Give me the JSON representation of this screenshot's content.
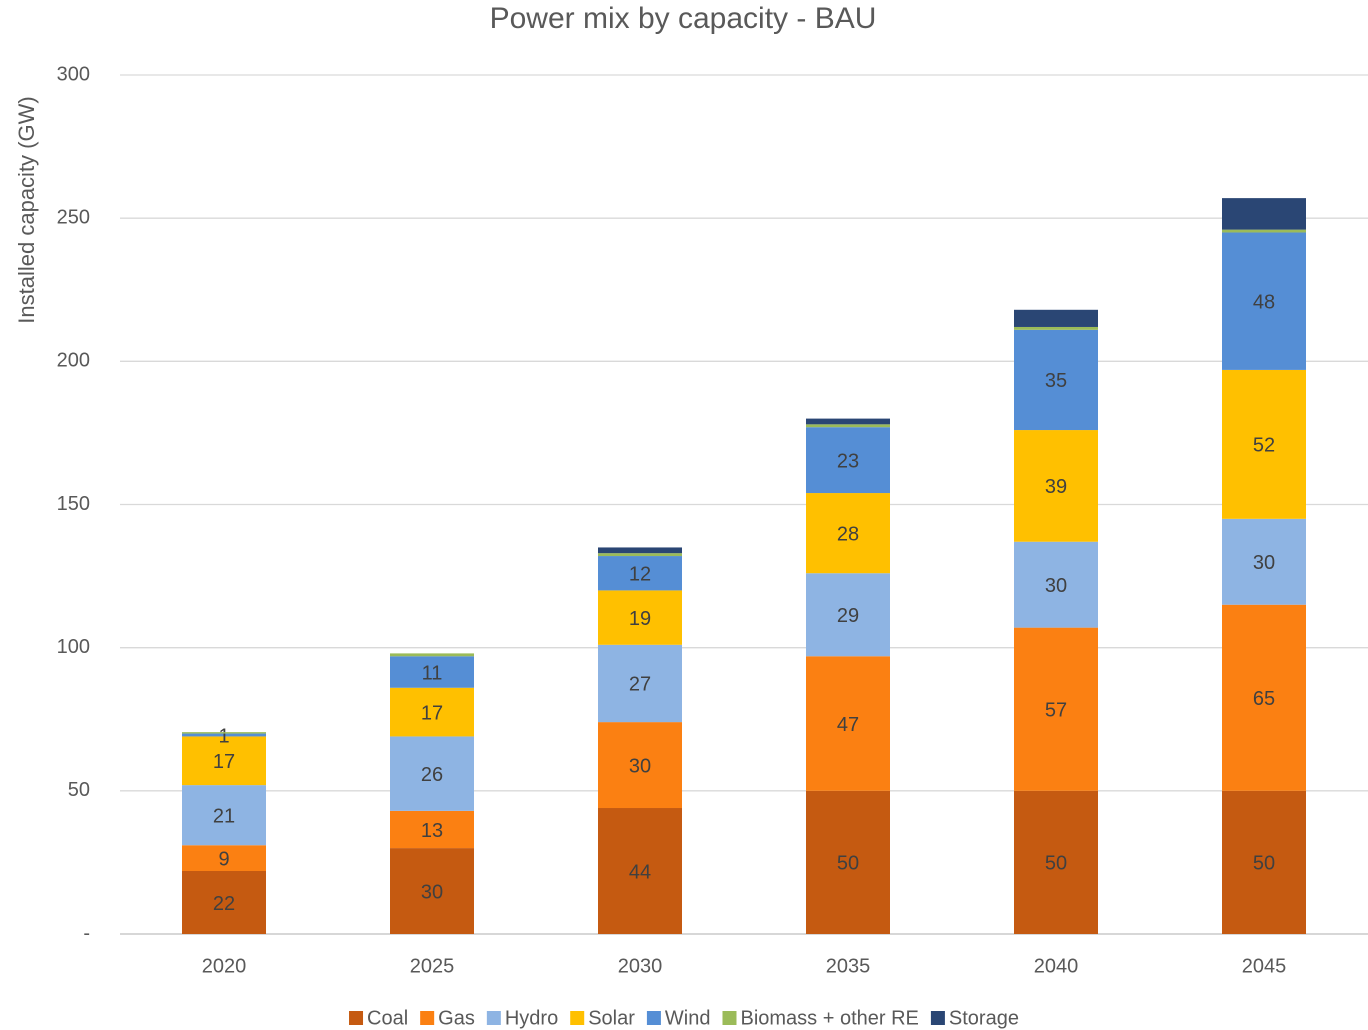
{
  "chart_data": {
    "type": "stacked_bar",
    "title": "Power mix by capacity - BAU",
    "ylabel": "Installed capacity (GW)",
    "categories": [
      "2020",
      "2025",
      "2030",
      "2035",
      "2040",
      "2045"
    ],
    "series": [
      {
        "name": "Coal",
        "color": "#c55a11",
        "show_labels": true,
        "values": [
          22,
          30,
          44,
          50,
          50,
          50
        ]
      },
      {
        "name": "Gas",
        "color": "#fb8012",
        "show_labels": true,
        "values": [
          9,
          13,
          30,
          47,
          57,
          65
        ]
      },
      {
        "name": "Hydro",
        "color": "#8eb4e3",
        "show_labels": true,
        "values": [
          21,
          26,
          27,
          29,
          30,
          30
        ]
      },
      {
        "name": "Solar",
        "color": "#ffc000",
        "show_labels": true,
        "values": [
          17,
          17,
          19,
          28,
          39,
          52
        ]
      },
      {
        "name": "Wind",
        "color": "#558ed5",
        "show_labels": true,
        "values": [
          1,
          11,
          12,
          23,
          35,
          48
        ]
      },
      {
        "name": "Biomass + other RE",
        "color": "#9bbb59",
        "show_labels": false,
        "values": [
          0.5,
          1,
          1,
          1,
          1,
          1
        ]
      },
      {
        "name": "Storage",
        "color": "#2a4674",
        "show_labels": false,
        "values": [
          0,
          0,
          2,
          2,
          6,
          11
        ]
      }
    ],
    "ylim": [
      0,
      300
    ],
    "yticks": [
      {
        "value": 0,
        "label": "-"
      },
      50,
      100,
      150,
      200,
      250,
      300
    ],
    "grid": true,
    "legend": "bottom"
  }
}
